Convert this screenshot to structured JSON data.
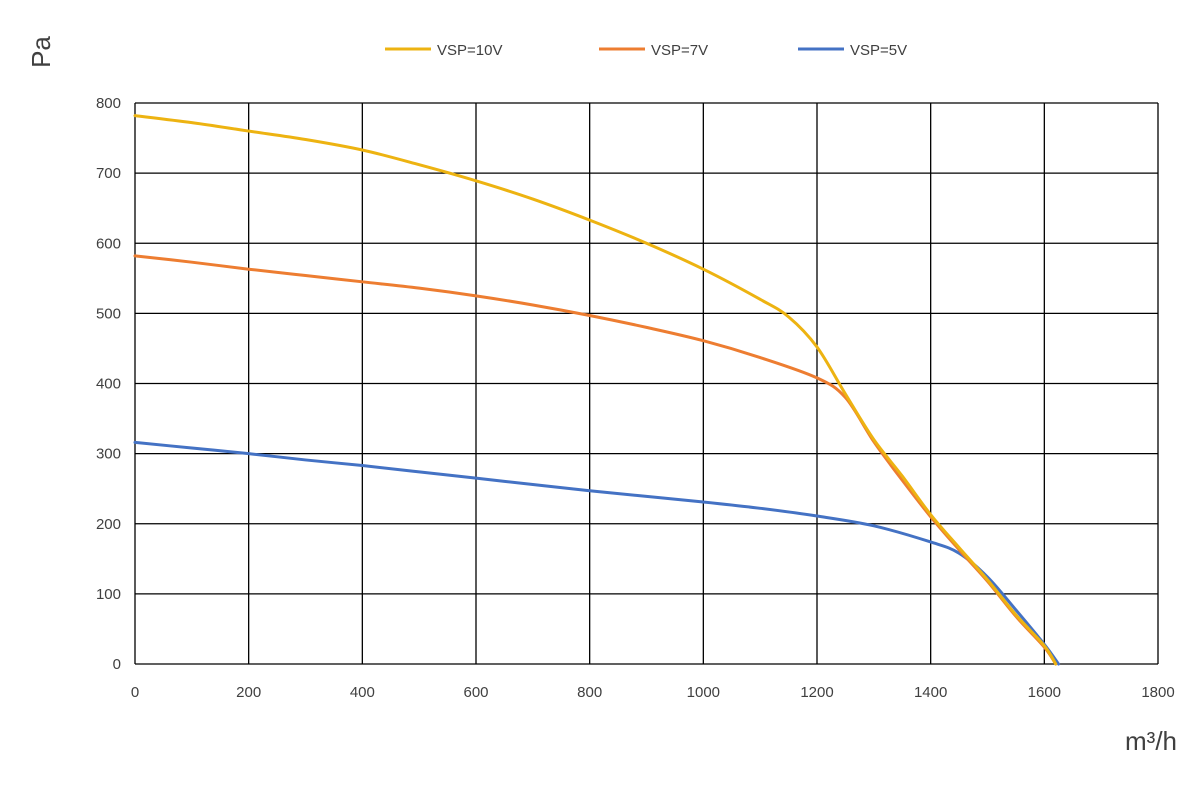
{
  "chart_data": {
    "type": "line",
    "title": "",
    "xlabel": "m³/h",
    "ylabel": "Pa",
    "xlim": [
      0,
      1800
    ],
    "ylim": [
      0,
      800
    ],
    "x_ticks": [
      0,
      200,
      400,
      600,
      800,
      1000,
      1200,
      1400,
      1600,
      1800
    ],
    "y_ticks": [
      0,
      100,
      200,
      300,
      400,
      500,
      600,
      700,
      800
    ],
    "grid": true,
    "legend_position": "top",
    "series": [
      {
        "name": "VSP=10V",
        "color": "#EDB311",
        "points": [
          [
            0,
            782
          ],
          [
            100,
            772
          ],
          [
            200,
            760
          ],
          [
            300,
            748
          ],
          [
            400,
            733
          ],
          [
            500,
            712
          ],
          [
            600,
            689
          ],
          [
            700,
            663
          ],
          [
            800,
            633
          ],
          [
            900,
            600
          ],
          [
            1000,
            563
          ],
          [
            1100,
            520
          ],
          [
            1150,
            495
          ],
          [
            1200,
            452
          ],
          [
            1250,
            385
          ],
          [
            1300,
            320
          ],
          [
            1350,
            268
          ],
          [
            1400,
            213
          ],
          [
            1450,
            166
          ],
          [
            1500,
            120
          ],
          [
            1550,
            70
          ],
          [
            1600,
            26
          ],
          [
            1620,
            0
          ]
        ]
      },
      {
        "name": "VSP=7V",
        "color": "#ED7D31",
        "points": [
          [
            0,
            582
          ],
          [
            100,
            573
          ],
          [
            200,
            563
          ],
          [
            300,
            554
          ],
          [
            400,
            545
          ],
          [
            500,
            536
          ],
          [
            600,
            525
          ],
          [
            700,
            512
          ],
          [
            800,
            497
          ],
          [
            900,
            480
          ],
          [
            1000,
            461
          ],
          [
            1100,
            437
          ],
          [
            1200,
            408
          ],
          [
            1250,
            380
          ],
          [
            1300,
            317
          ],
          [
            1350,
            262
          ],
          [
            1400,
            210
          ],
          [
            1450,
            163
          ],
          [
            1500,
            118
          ],
          [
            1550,
            68
          ],
          [
            1600,
            24
          ],
          [
            1620,
            0
          ]
        ]
      },
      {
        "name": "VSP=5V",
        "color": "#4472C4",
        "points": [
          [
            0,
            316
          ],
          [
            100,
            308
          ],
          [
            200,
            300
          ],
          [
            300,
            291
          ],
          [
            400,
            283
          ],
          [
            500,
            274
          ],
          [
            600,
            265
          ],
          [
            700,
            256
          ],
          [
            800,
            247
          ],
          [
            900,
            239
          ],
          [
            1000,
            231
          ],
          [
            1100,
            222
          ],
          [
            1200,
            211
          ],
          [
            1300,
            197
          ],
          [
            1400,
            174
          ],
          [
            1450,
            158
          ],
          [
            1500,
            124
          ],
          [
            1550,
            77
          ],
          [
            1600,
            28
          ],
          [
            1625,
            0
          ]
        ]
      }
    ]
  }
}
